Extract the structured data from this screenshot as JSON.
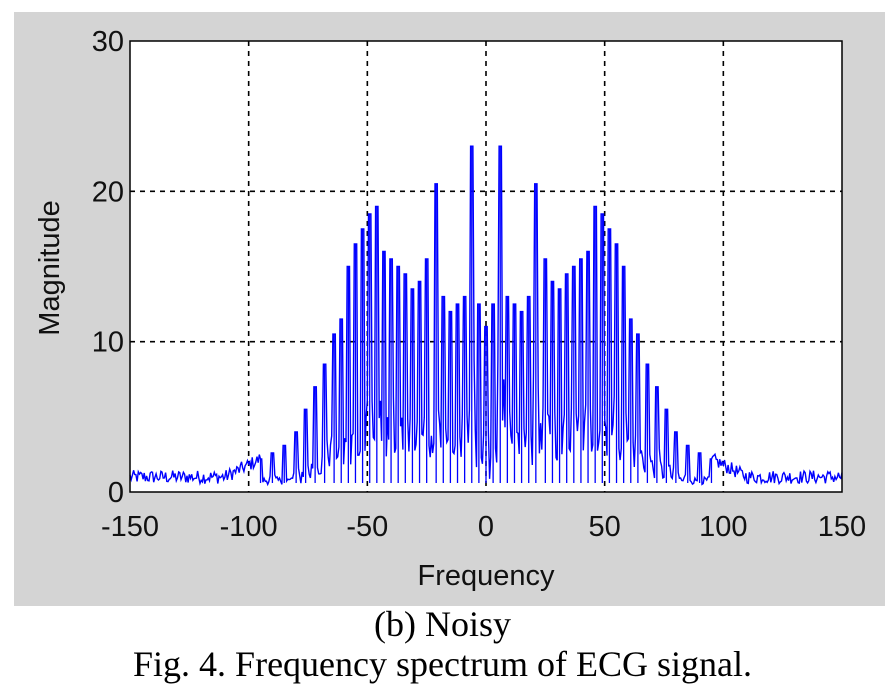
{
  "chart_data": {
    "type": "line",
    "title": "",
    "xlabel": "Frequency",
    "ylabel": "Magnitude",
    "xlim": [
      -150,
      150
    ],
    "ylim": [
      0,
      30
    ],
    "xticks": [
      -150,
      -100,
      -50,
      0,
      50,
      100,
      150
    ],
    "yticks": [
      0,
      10,
      20,
      30
    ],
    "xtick_labels": [
      "-150",
      "-100",
      "-50",
      "0",
      "50",
      "100",
      "150"
    ],
    "ytick_labels": [
      "0",
      "10",
      "20",
      "30"
    ],
    "grid": true,
    "line_color": "#0000ff",
    "peaks": [
      {
        "x": -95,
        "y": 2.2
      },
      {
        "x": -90,
        "y": 2.6
      },
      {
        "x": -85,
        "y": 3.1
      },
      {
        "x": -80,
        "y": 4.0
      },
      {
        "x": -76,
        "y": 5.5
      },
      {
        "x": -72,
        "y": 7.0
      },
      {
        "x": -68,
        "y": 8.5
      },
      {
        "x": -64,
        "y": 10.5
      },
      {
        "x": -61,
        "y": 11.5
      },
      {
        "x": -58,
        "y": 15.0
      },
      {
        "x": -55,
        "y": 16.5
      },
      {
        "x": -52,
        "y": 17.5
      },
      {
        "x": -49,
        "y": 18.5
      },
      {
        "x": -46,
        "y": 19.0
      },
      {
        "x": -43,
        "y": 16.0
      },
      {
        "x": -40,
        "y": 15.5
      },
      {
        "x": -37,
        "y": 15.0
      },
      {
        "x": -34,
        "y": 14.5
      },
      {
        "x": -31,
        "y": 13.5
      },
      {
        "x": -28,
        "y": 14.0
      },
      {
        "x": -25,
        "y": 15.5
      },
      {
        "x": -21,
        "y": 20.5
      },
      {
        "x": -18,
        "y": 13.0
      },
      {
        "x": -15,
        "y": 12.0
      },
      {
        "x": -12,
        "y": 12.5
      },
      {
        "x": -9,
        "y": 13.0
      },
      {
        "x": -6,
        "y": 23.0
      },
      {
        "x": -3,
        "y": 12.5
      },
      {
        "x": 0,
        "y": 11.0
      },
      {
        "x": 3,
        "y": 12.5
      },
      {
        "x": 6,
        "y": 23.0
      },
      {
        "x": 9,
        "y": 13.0
      },
      {
        "x": 12,
        "y": 12.5
      },
      {
        "x": 15,
        "y": 12.0
      },
      {
        "x": 18,
        "y": 13.0
      },
      {
        "x": 21,
        "y": 20.5
      },
      {
        "x": 25,
        "y": 15.5
      },
      {
        "x": 28,
        "y": 14.0
      },
      {
        "x": 31,
        "y": 13.5
      },
      {
        "x": 34,
        "y": 14.5
      },
      {
        "x": 37,
        "y": 15.0
      },
      {
        "x": 40,
        "y": 15.5
      },
      {
        "x": 43,
        "y": 16.0
      },
      {
        "x": 46,
        "y": 19.0
      },
      {
        "x": 49,
        "y": 18.5
      },
      {
        "x": 52,
        "y": 17.5
      },
      {
        "x": 55,
        "y": 16.5
      },
      {
        "x": 58,
        "y": 15.0
      },
      {
        "x": 61,
        "y": 11.5
      },
      {
        "x": 64,
        "y": 10.5
      },
      {
        "x": 68,
        "y": 8.5
      },
      {
        "x": 72,
        "y": 7.0
      },
      {
        "x": 76,
        "y": 5.5
      },
      {
        "x": 80,
        "y": 4.0
      },
      {
        "x": 85,
        "y": 3.1
      },
      {
        "x": 90,
        "y": 2.6
      },
      {
        "x": 95,
        "y": 2.2
      }
    ]
  },
  "captions": {
    "sub": "(b) Noisy",
    "fig": "Fig. 4. Frequency spectrum of ECG signal."
  }
}
